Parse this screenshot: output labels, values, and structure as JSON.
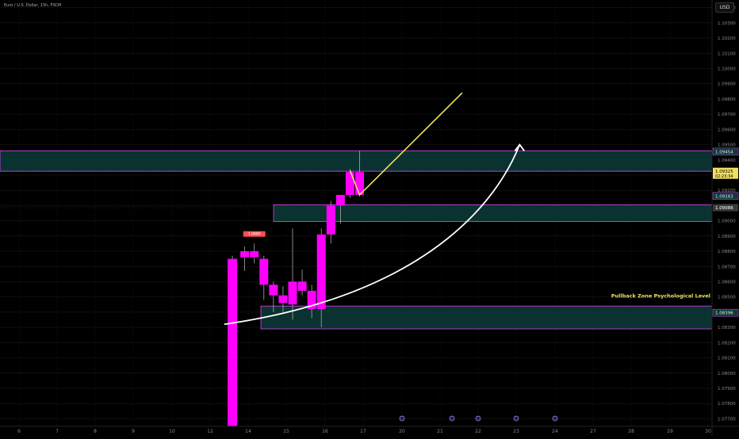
{
  "symbol": "Euro / U.S. Dollar, 15h, FXCM",
  "currency_button": "USD",
  "annotation": "Pullback Zone Psychological Level",
  "high_marker": "1.0889",
  "colors": {
    "candle": "#ff00ff",
    "zone_fill": "#0c3b38",
    "zone_border": "#e040fb",
    "yellow_line": "#f0e060",
    "white_arrow": "#ffffff",
    "text": "#c9c9c9",
    "axis_text": "#8a8a8a",
    "grid": "#1c1c1c",
    "price_tag_green": "#0c3b38"
  },
  "chart_data": {
    "type": "candlestick",
    "ylim": [
      1.0765,
      1.1045
    ],
    "y_ticks": [
      "1.07700",
      "1.07800",
      "1.07900",
      "1.08000",
      "1.08100",
      "1.08200",
      "1.08300",
      "1.08400",
      "1.08500",
      "1.08600",
      "1.08700",
      "1.08800",
      "1.08900",
      "1.09000",
      "1.09100",
      "1.09200",
      "1.09300",
      "1.09400",
      "1.09500",
      "1.09600",
      "1.09700",
      "1.09800",
      "1.09900",
      "1.10000",
      "1.10100",
      "1.10200",
      "1.10300",
      "1.10400"
    ],
    "x_ticks": [
      "6",
      "7",
      "8",
      "9",
      "10",
      "12",
      "14",
      "15",
      "16",
      "17",
      "20",
      "21",
      "22",
      "23",
      "24",
      "27",
      "28",
      "29",
      "30"
    ],
    "candles": [
      {
        "i": 13.8,
        "o": 1.0765,
        "h": 1.0877,
        "l": 1.0765,
        "c": 1.0875
      },
      {
        "i": 14.25,
        "o": 1.0876,
        "h": 1.0883,
        "l": 1.0867,
        "c": 1.088
      },
      {
        "i": 14.6,
        "o": 1.088,
        "h": 1.0885,
        "l": 1.0872,
        "c": 1.0876
      },
      {
        "i": 14.95,
        "o": 1.0875,
        "h": 1.0877,
        "l": 1.0848,
        "c": 1.0858
      },
      {
        "i": 15.3,
        "o": 1.0858,
        "h": 1.086,
        "l": 1.084,
        "c": 1.0851
      },
      {
        "i": 15.65,
        "o": 1.0851,
        "h": 1.0857,
        "l": 1.084,
        "c": 1.0846
      },
      {
        "i": 16.0,
        "o": 1.0845,
        "h": 1.0895,
        "l": 1.0835,
        "c": 1.086
      },
      {
        "i": 16.35,
        "o": 1.086,
        "h": 1.0868,
        "l": 1.0851,
        "c": 1.0854
      },
      {
        "i": 16.7,
        "o": 1.0854,
        "h": 1.0858,
        "l": 1.0836,
        "c": 1.0842
      },
      {
        "i": 17.05,
        "o": 1.0842,
        "h": 1.0895,
        "l": 1.083,
        "c": 1.0891
      },
      {
        "i": 17.4,
        "o": 1.0891,
        "h": 1.0913,
        "l": 1.0885,
        "c": 1.091
      },
      {
        "i": 17.75,
        "o": 1.091,
        "h": 1.0917,
        "l": 1.0898,
        "c": 1.0917
      },
      {
        "i": 18.1,
        "o": 1.0917,
        "h": 1.0934,
        "l": 1.0915,
        "c": 1.0932
      },
      {
        "i": 18.45,
        "o": 1.0932,
        "h": 1.0946,
        "l": 1.0916,
        "c": 1.0917
      }
    ],
    "zones": [
      {
        "top": 1.0946,
        "bottom": 1.09325
      },
      {
        "top": 1.09105,
        "bottom": 1.08995
      },
      {
        "top": 1.0844,
        "bottom": 1.0829
      }
    ],
    "price_tags": [
      {
        "price": 1.09454,
        "label": "1.09454",
        "style": "green"
      },
      {
        "price": 1.09325,
        "label": "1.09325",
        "sub": "02:23:34",
        "style": "yellow"
      },
      {
        "price": 1.09163,
        "label": "1.09163",
        "style": "green"
      },
      {
        "price": 1.09086,
        "label": "1.09086",
        "style": "gray"
      },
      {
        "price": 1.08396,
        "label": "1.08396",
        "style": "green"
      }
    ],
    "dashed_line": 1.09325,
    "yellow_path": [
      [
        18.1,
        1.0933
      ],
      [
        18.45,
        1.0917
      ],
      [
        22.2,
        1.0984
      ]
    ],
    "white_arrow_path": [
      [
        13.5,
        1.0832
      ],
      [
        20.4,
        1.085
      ],
      [
        23.3,
        1.0905
      ],
      [
        24.3,
        1.095
      ]
    ]
  }
}
